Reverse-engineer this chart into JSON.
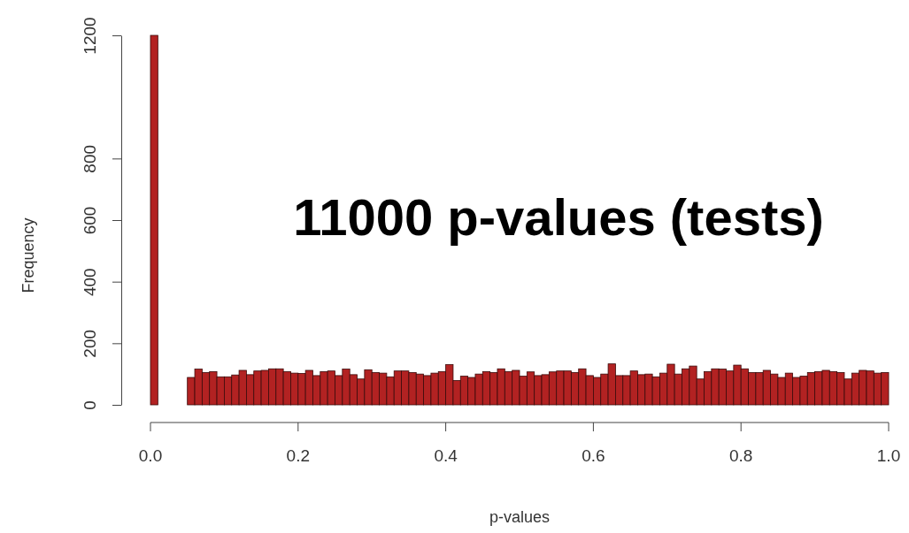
{
  "chart_data": {
    "type": "histogram",
    "xlabel": "p-values",
    "ylabel": "Frequency",
    "color": "#b22222",
    "bins": [
      0,
      0.01,
      0.02,
      0.03,
      0.04,
      0.05,
      0.06,
      0.07,
      0.08,
      0.09,
      0.1,
      0.11,
      0.12,
      0.13,
      0.14,
      0.15,
      0.16,
      0.17,
      0.18,
      0.19,
      0.2,
      0.21,
      0.22,
      0.23,
      0.24,
      0.25,
      0.26,
      0.27,
      0.28,
      0.29,
      0.3,
      0.31,
      0.32,
      0.33,
      0.34,
      0.35,
      0.36,
      0.37,
      0.38,
      0.39,
      0.4,
      0.41,
      0.42,
      0.43,
      0.44,
      0.45,
      0.46,
      0.47,
      0.48,
      0.49,
      0.5,
      0.51,
      0.52,
      0.53,
      0.54,
      0.55,
      0.56,
      0.57,
      0.58,
      0.59,
      0.6,
      0.61,
      0.62,
      0.63,
      0.64,
      0.65,
      0.66,
      0.67,
      0.68,
      0.69,
      0.7,
      0.71,
      0.72,
      0.73,
      0.74,
      0.75,
      0.76,
      0.77,
      0.78,
      0.79,
      0.8,
      0.81,
      0.82,
      0.83,
      0.84,
      0.85,
      0.86,
      0.87,
      0.88,
      0.89,
      0.9,
      0.91,
      0.92,
      0.93,
      0.94,
      0.95,
      0.96,
      0.97,
      0.98,
      0.99,
      1
    ],
    "values": [
      1200,
      0,
      0,
      0,
      0,
      89,
      116,
      105,
      108,
      91,
      91,
      97,
      112,
      98,
      110,
      112,
      117,
      117,
      108,
      103,
      102,
      112,
      95,
      108,
      110,
      95,
      116,
      98,
      84,
      114,
      105,
      103,
      91,
      110,
      110,
      105,
      100,
      95,
      103,
      108,
      131,
      79,
      93,
      89,
      100,
      108,
      105,
      117,
      108,
      112,
      93,
      107,
      95,
      98,
      107,
      110,
      110,
      105,
      117,
      95,
      89,
      100,
      133,
      95,
      95,
      110,
      98,
      100,
      91,
      103,
      132,
      100,
      117,
      126,
      84,
      108,
      117,
      116,
      110,
      129,
      117,
      105,
      105,
      112,
      100,
      89,
      103,
      89,
      93,
      105,
      108,
      112,
      108,
      105,
      84,
      103,
      112,
      110,
      103,
      105
    ],
    "xlim": [
      0,
      1
    ],
    "xticks": [
      {
        "value": 0,
        "label": "0.0"
      },
      {
        "value": 0.2,
        "label": "0.2"
      },
      {
        "value": 0.4,
        "label": "0.4"
      },
      {
        "value": 0.6,
        "label": "0.6"
      },
      {
        "value": 0.8,
        "label": "0.8"
      },
      {
        "value": 1,
        "label": "1.0"
      }
    ],
    "ylim": [
      0,
      1200
    ],
    "yticks": [
      0,
      200,
      400,
      600,
      800,
      1200
    ],
    "annotations": [
      "11000 p-values (tests)"
    ]
  }
}
